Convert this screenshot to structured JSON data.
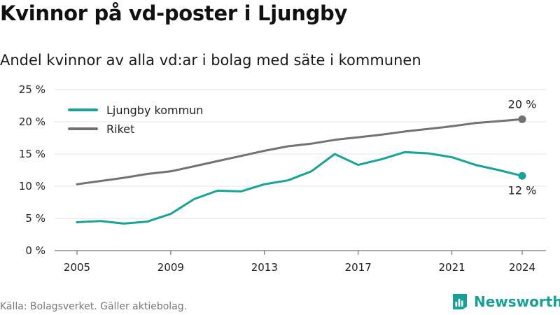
{
  "header": {
    "title": "Kvinnor på vd-poster i Ljungby",
    "subtitle": "Andel kvinnor av alla vd:ar i bolag med säte i kommunen"
  },
  "footer": {
    "source": "Källa: Bolagsverket. Gäller aktiebolag.",
    "brand": "Newsworthy",
    "brand_icon": "newsworthy-logo-icon"
  },
  "chart_data": {
    "type": "line",
    "title": "Kvinnor på vd-poster i Ljungby",
    "subtitle": "Andel kvinnor av alla vd:ar i bolag med säte i kommunen",
    "x": [
      2005,
      2006,
      2007,
      2008,
      2009,
      2010,
      2011,
      2012,
      2013,
      2014,
      2015,
      2016,
      2017,
      2018,
      2019,
      2020,
      2021,
      2022,
      2023,
      2024
    ],
    "x_ticks": [
      "2005",
      "2009",
      "2013",
      "2017",
      "2021",
      "2024"
    ],
    "y_ticks": [
      "0 %",
      "5 %",
      "10 %",
      "15 %",
      "20 %",
      "25 %"
    ],
    "ylim": [
      0,
      25
    ],
    "grid": "horizontal",
    "legend_position": "top-left",
    "series": [
      {
        "name": "Ljungby kommun",
        "color": "#17a398",
        "values": [
          4.4,
          4.6,
          4.2,
          4.5,
          5.7,
          8.0,
          9.3,
          9.2,
          10.3,
          10.9,
          12.3,
          15.0,
          13.3,
          14.2,
          15.3,
          15.1,
          14.5,
          13.3,
          12.5,
          11.6
        ],
        "end_label": "12 %",
        "end_label_position": "below"
      },
      {
        "name": "Riket",
        "color": "#717176",
        "values": [
          10.3,
          10.8,
          11.3,
          11.9,
          12.3,
          13.1,
          13.9,
          14.7,
          15.5,
          16.2,
          16.6,
          17.2,
          17.6,
          18.0,
          18.5,
          18.9,
          19.3,
          19.8,
          20.1,
          20.4
        ],
        "end_label": "20 %",
        "end_label_position": "above"
      }
    ]
  }
}
